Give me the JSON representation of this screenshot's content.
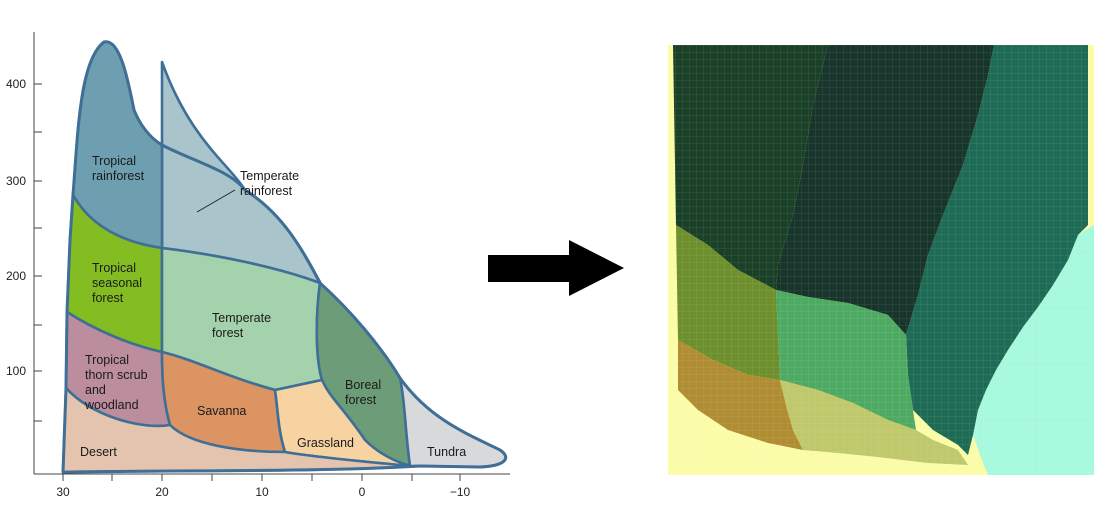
{
  "diagram": {
    "y_ticks": [
      "400",
      "300",
      "200",
      "100"
    ],
    "x_ticks": [
      "30",
      "20",
      "10",
      "0",
      "−10"
    ],
    "biomes": [
      {
        "key": "tropical_rainforest",
        "lines": [
          "Tropical",
          "rainforest"
        ],
        "color": "#6e9fb0"
      },
      {
        "key": "temperate_rainforest",
        "lines": [
          "Temperate",
          "rainforest"
        ],
        "color": "#a9c4cb"
      },
      {
        "key": "tropical_seasonal_forest",
        "lines": [
          "Tropical",
          "seasonal",
          "forest"
        ],
        "color": "#83bd22"
      },
      {
        "key": "temperate_forest",
        "lines": [
          "Temperate",
          "forest"
        ],
        "color": "#a3d2ac"
      },
      {
        "key": "tropical_thorn_scrub",
        "lines": [
          "Tropical",
          "thorn scrub",
          "and",
          "woodland"
        ],
        "color": "#bb8d9d"
      },
      {
        "key": "savanna",
        "lines": [
          "Savanna"
        ],
        "color": "#dc9463"
      },
      {
        "key": "boreal_forest",
        "lines": [
          "Boreal",
          "forest"
        ],
        "color": "#6d9d78"
      },
      {
        "key": "grassland",
        "lines": [
          "Grassland"
        ],
        "color": "#f8d3a2"
      },
      {
        "key": "desert",
        "lines": [
          "Desert"
        ],
        "color": "#e4c4af"
      },
      {
        "key": "tundra",
        "lines": [
          "Tundra"
        ],
        "color": "#d8d9db"
      }
    ],
    "arrow_color": "#000000"
  },
  "grid_map": {
    "colors": {
      "dark_forest": "#1a4028",
      "darker_forest": "#17352b",
      "teal_forest": "#1d6b55",
      "olive": "#6e8f2d",
      "medium_green": "#4eaa63",
      "ochre": "#b08d32",
      "pale_green": "#bfc86a",
      "pale_yellow": "#fbfca8",
      "aqua": "#a6f9dc"
    }
  }
}
